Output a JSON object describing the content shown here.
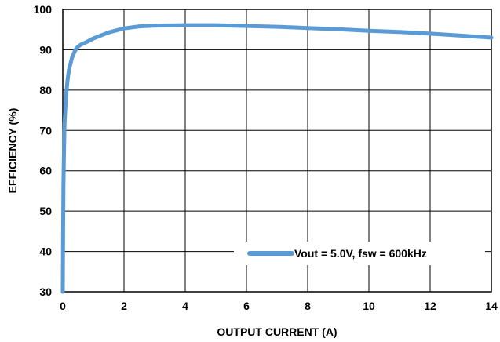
{
  "chart_data": {
    "type": "line",
    "title": "",
    "xlabel": "OUTPUT CURRENT (A)",
    "ylabel": "EFFICIENCY (%)",
    "xlim": [
      0,
      14
    ],
    "ylim": [
      30,
      100
    ],
    "xticks": [
      0,
      2,
      4,
      6,
      8,
      10,
      12,
      14
    ],
    "yticks": [
      30,
      40,
      50,
      60,
      70,
      80,
      90,
      100
    ],
    "grid": true,
    "legend_position": "bottom-right",
    "series": [
      {
        "name": "Vout = 5.0V, fsw = 600kHz",
        "color": "#5B9BD5",
        "x": [
          0.0,
          0.01,
          0.02,
          0.04,
          0.06,
          0.1,
          0.15,
          0.2,
          0.3,
          0.4,
          0.5,
          0.6,
          0.8,
          1.0,
          1.5,
          2.0,
          2.5,
          3.0,
          4.0,
          5.0,
          6.0,
          7.0,
          8.0,
          9.0,
          10.0,
          11.0,
          12.0,
          13.0,
          14.0
        ],
        "y": [
          30.0,
          45.0,
          56.0,
          66.0,
          72.0,
          78.0,
          82.0,
          85.0,
          88.0,
          89.8,
          90.8,
          91.3,
          92.0,
          92.8,
          94.3,
          95.3,
          95.8,
          96.0,
          96.1,
          96.1,
          95.9,
          95.7,
          95.4,
          95.1,
          94.7,
          94.4,
          94.0,
          93.5,
          93.0
        ]
      }
    ]
  }
}
